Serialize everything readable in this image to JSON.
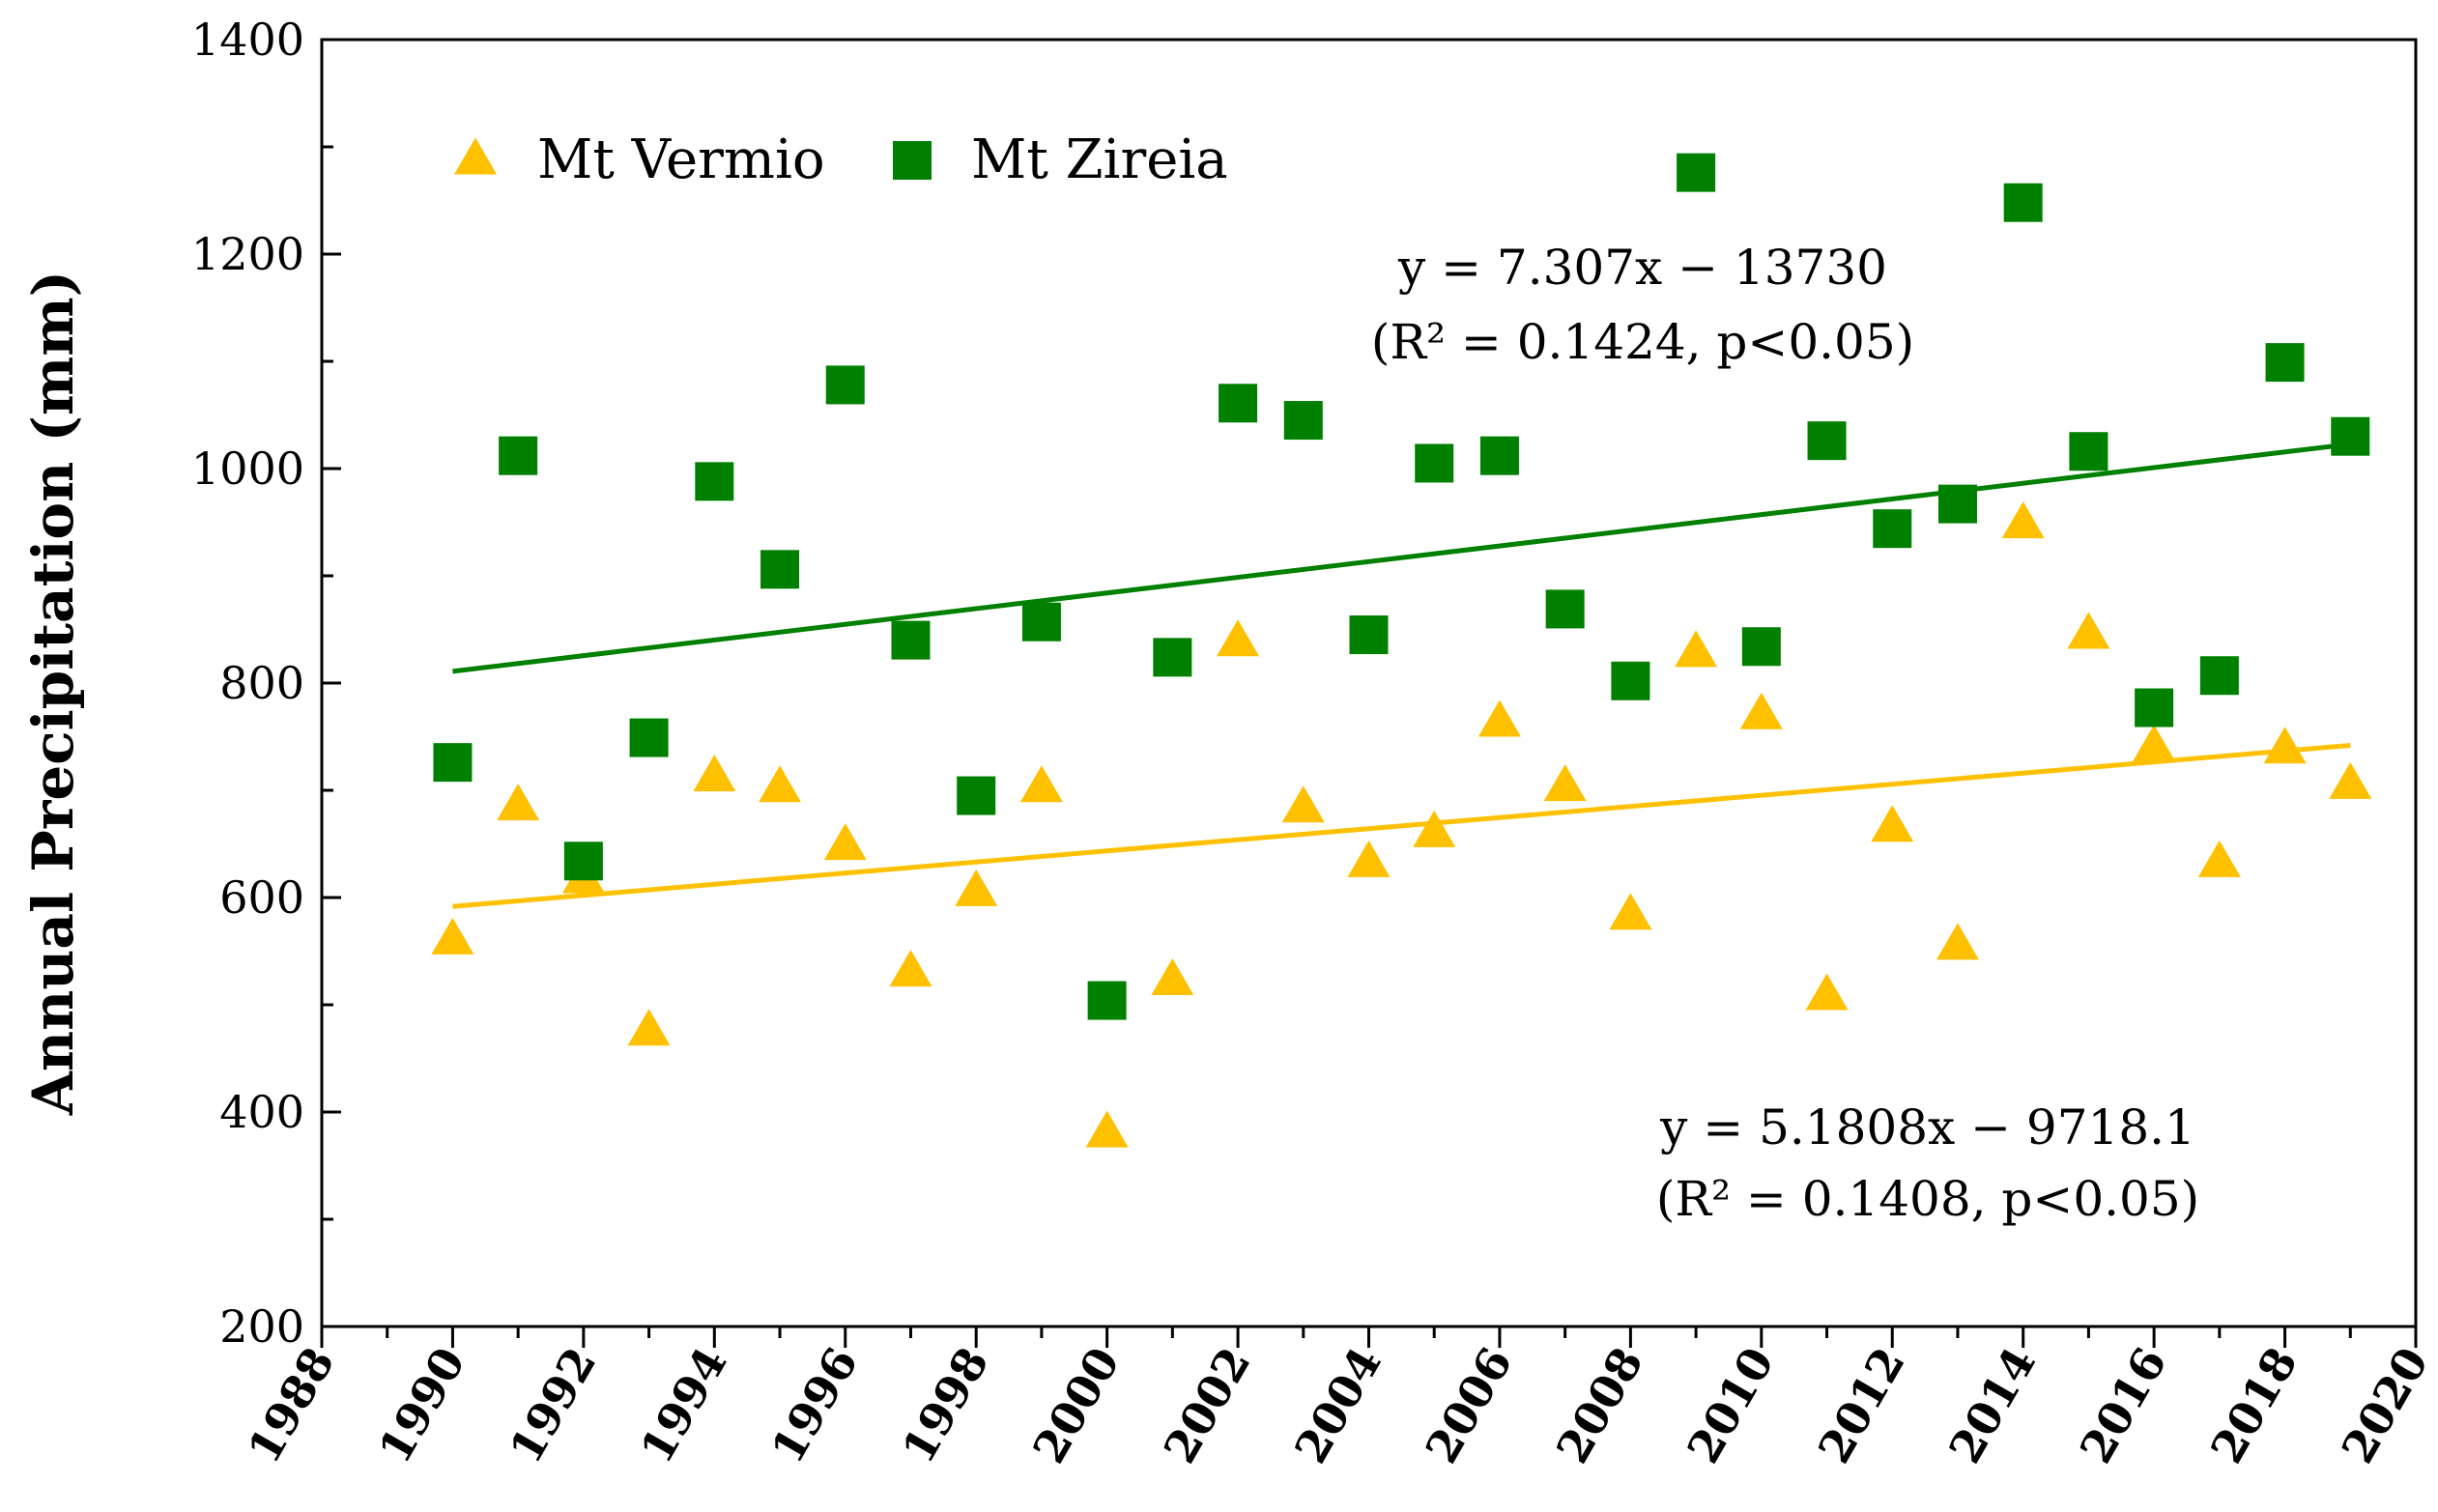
{
  "chart_data": {
    "type": "scatter",
    "ylabel": "Annual Precipitation  (mm)",
    "xlabel": "",
    "xlim": [
      1988,
      2020
    ],
    "ylim": [
      200,
      1400
    ],
    "x_ticks": [
      "1988",
      "1990",
      "1992",
      "1994",
      "1996",
      "1998",
      "2000",
      "2002",
      "2004",
      "2006",
      "2008",
      "2010",
      "2012",
      "2014",
      "2016",
      "2018",
      "2020"
    ],
    "y_ticks": [
      "200",
      "400",
      "600",
      "800",
      "1000",
      "1200",
      "1400"
    ],
    "legend_position": "top-left",
    "grid": false,
    "series": [
      {
        "name": "Mt Vermio",
        "marker": "triangle",
        "color": "#FFC000",
        "x": [
          1990,
          1991,
          1992,
          1993,
          1994,
          1995,
          1996,
          1997,
          1998,
          1999,
          2000,
          2001,
          2002,
          2003,
          2004,
          2005,
          2006,
          2007,
          2008,
          2009,
          2010,
          2011,
          2012,
          2013,
          2014,
          2015,
          2016,
          2017,
          2018,
          2019
        ],
        "y": [
          560,
          685,
          617,
          475,
          712,
          702,
          648,
          530,
          605,
          702,
          380,
          522,
          838,
          683,
          632,
          660,
          763,
          703,
          583,
          828,
          770,
          508,
          665,
          555,
          948,
          845,
          740,
          632,
          738,
          705
        ],
        "trendline": {
          "slope": 5.1808,
          "intercept": -9718.1,
          "equation": "y = 5.1808x − 9718.1",
          "stats": "(R² = 0.1408, p<0.05)"
        }
      },
      {
        "name": "Mt Zireia",
        "marker": "square",
        "color": "#008000",
        "x": [
          1990,
          1991,
          1992,
          1993,
          1994,
          1995,
          1996,
          1997,
          1998,
          1999,
          2000,
          2001,
          2002,
          2003,
          2004,
          2005,
          2006,
          2007,
          2008,
          2009,
          2010,
          2011,
          2012,
          2013,
          2014,
          2015,
          2016,
          2017,
          2018,
          2019
        ],
        "y": [
          726,
          1012,
          634,
          749,
          988,
          906,
          1078,
          840,
          695,
          857,
          504,
          824,
          1061,
          1045,
          845,
          1005,
          1012,
          869,
          802,
          1276,
          834,
          1026,
          944,
          967,
          1248,
          1016,
          777,
          807,
          1099,
          1030
        ],
        "trendline": {
          "slope": 7.307,
          "intercept": -13730,
          "equation": "y = 7.307x − 13730",
          "stats": "(R² = 0.1424, p<0.05)"
        }
      }
    ]
  }
}
